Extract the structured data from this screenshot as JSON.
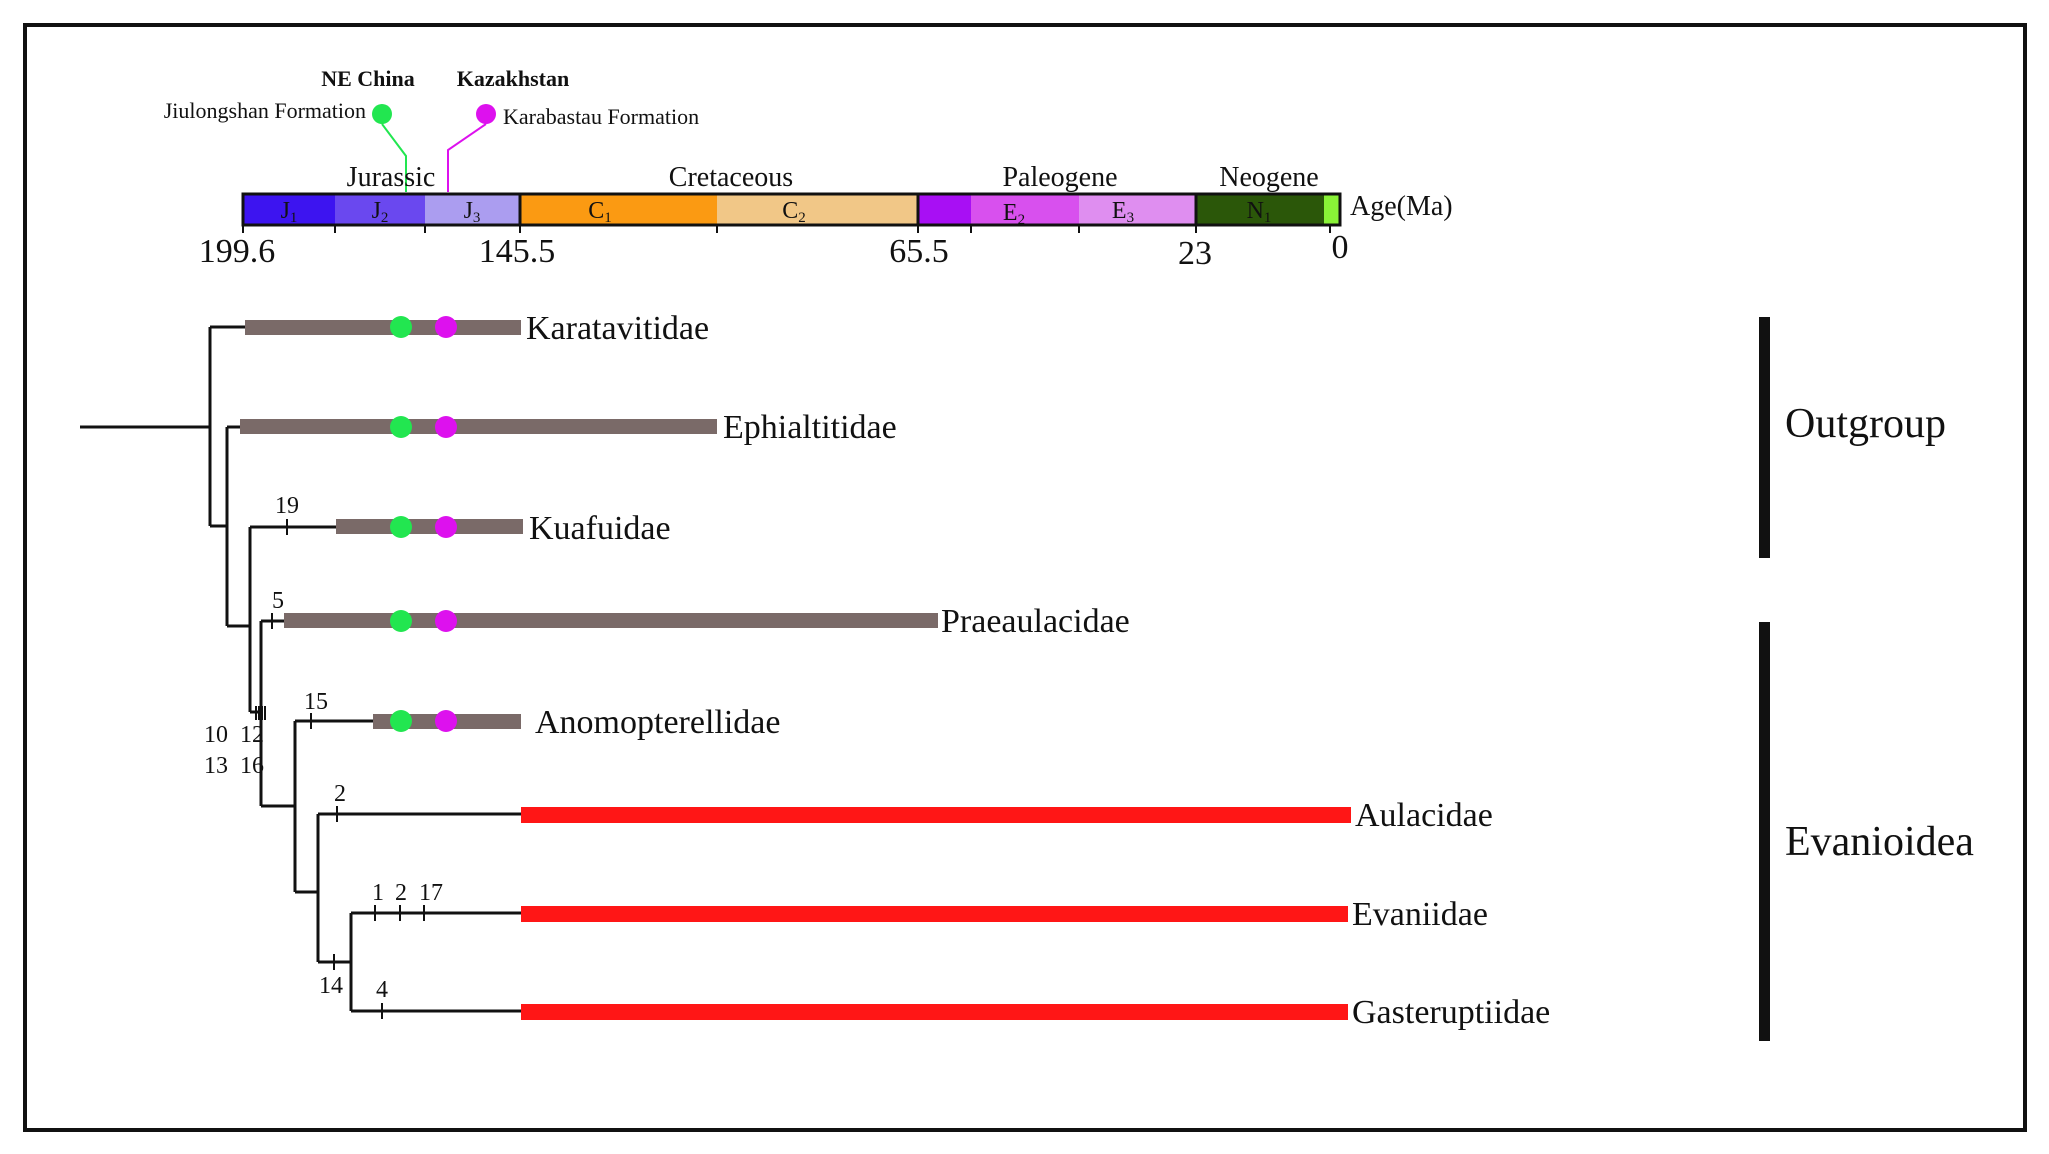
{
  "localities": [
    {
      "region": "NE China",
      "formation": "Jiulongshan Formation",
      "color": "#22e650"
    },
    {
      "region": "Kazakhstan",
      "formation": "Karabastau Formation",
      "color": "#dd11ee"
    }
  ],
  "timescale": {
    "periods": [
      {
        "name": "Jurassic"
      },
      {
        "name": "Cretaceous"
      },
      {
        "name": "Paleogene"
      },
      {
        "name": "Neogene"
      }
    ],
    "epochs": [
      {
        "base": "J",
        "sub": "1",
        "color": "#3d14f0"
      },
      {
        "base": "J",
        "sub": "2",
        "color": "#6a48ef"
      },
      {
        "base": "J",
        "sub": "3",
        "color": "#ab9df0"
      },
      {
        "base": "C",
        "sub": "1",
        "color": "#fb9a12"
      },
      {
        "base": "C",
        "sub": "2",
        "color": "#f1c787"
      },
      {
        "base": "",
        "sub": "",
        "color": "#a80ff4"
      },
      {
        "base": "E",
        "sub": "2",
        "color": "#d850ee"
      },
      {
        "base": "E",
        "sub": "3",
        "color": "#df8ef0"
      },
      {
        "base": "N",
        "sub": "1",
        "color": "#2b5709"
      },
      {
        "base": "",
        "sub": "",
        "color": "#89f237"
      }
    ],
    "ages": [
      "199.6",
      "145.5",
      "65.5",
      "23",
      "0"
    ],
    "axis_label": "Age(Ma)"
  },
  "taxa": [
    {
      "name": "Karatavitidae",
      "bar_color": "#7a6a68",
      "has_fossil_dots": true
    },
    {
      "name": "Ephialtitidae",
      "bar_color": "#7a6a68",
      "has_fossil_dots": true
    },
    {
      "name": "Kuafuidae",
      "bar_color": "#7a6a68",
      "has_fossil_dots": true
    },
    {
      "name": "Praeaulacidae",
      "bar_color": "#7a6a68",
      "has_fossil_dots": true
    },
    {
      "name": "Anomopterellidae",
      "bar_color": "#7a6a68",
      "has_fossil_dots": true
    },
    {
      "name": "Aulacidae",
      "bar_color": "#ff1616",
      "has_fossil_dots": false
    },
    {
      "name": "Evaniidae",
      "bar_color": "#ff1616",
      "has_fossil_dots": false
    },
    {
      "name": "Gasteruptiidae",
      "bar_color": "#ff1616",
      "has_fossil_dots": false
    }
  ],
  "characters": [
    {
      "label": "19"
    },
    {
      "label": "5"
    },
    {
      "label": "15"
    },
    {
      "label": "10"
    },
    {
      "label": "12"
    },
    {
      "label": "13"
    },
    {
      "label": "16"
    },
    {
      "label": "2"
    },
    {
      "label": "1"
    },
    {
      "label": "2"
    },
    {
      "label": "17"
    },
    {
      "label": "14"
    },
    {
      "label": "4"
    }
  ],
  "groups": [
    {
      "name": "Outgroup"
    },
    {
      "name": "Evanioidea"
    }
  ]
}
